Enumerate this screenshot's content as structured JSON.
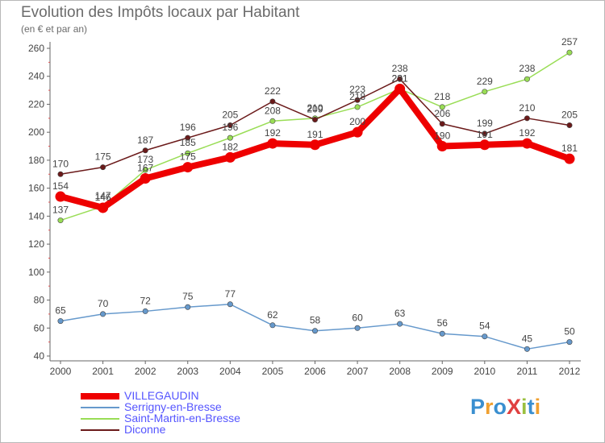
{
  "chart_data": {
    "type": "line",
    "title": "Evolution des Impôts locaux par Habitant",
    "subtitle": "(en € et par an)",
    "xlabel": "",
    "ylabel": "",
    "ylim": [
      40,
      260
    ],
    "yticks": [
      40,
      60,
      80,
      100,
      120,
      140,
      160,
      180,
      200,
      220,
      240,
      260
    ],
    "categories": [
      "2000",
      "2001",
      "2002",
      "2003",
      "2004",
      "2005",
      "2006",
      "2007",
      "2008",
      "2009",
      "2010",
      "2011",
      "2012"
    ],
    "series": [
      {
        "name": "VILLEGAUDIN",
        "color": "#ee0000",
        "values": [
          154,
          146,
          167,
          175,
          182,
          192,
          191,
          200,
          231,
          190,
          191,
          192,
          181
        ]
      },
      {
        "name": "Serrigny-en-Bresse",
        "color": "#6699cc",
        "values": [
          65,
          70,
          72,
          75,
          77,
          62,
          58,
          60,
          63,
          56,
          54,
          45,
          50
        ]
      },
      {
        "name": "Saint-Martin-en-Bresse",
        "color": "#99dd55",
        "values": [
          137,
          147,
          173,
          185,
          196,
          208,
          210,
          218,
          231,
          218,
          229,
          238,
          257
        ]
      },
      {
        "name": "Diconne",
        "color": "#6b1a1a",
        "values": [
          170,
          175,
          187,
          196,
          205,
          222,
          209,
          223,
          238,
          206,
          199,
          210,
          205
        ]
      }
    ],
    "grid": false,
    "legend": "bottom-left"
  },
  "logo": {
    "text": "ProXiti"
  }
}
